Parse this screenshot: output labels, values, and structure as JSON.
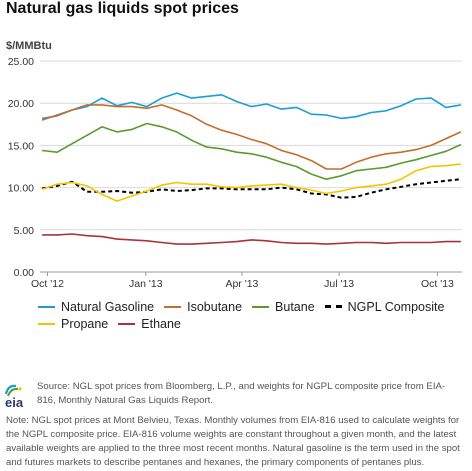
{
  "title": "Natural gas liquids spot prices",
  "unit": "$/MMBtu",
  "logo_text": "eia",
  "source": "Source: NGL spot prices from Bloomberg, L.P., and weights for NGPL composite price from EIA-816, Monthly Natural Gas Liquids Report.",
  "note": "Note: NGL spot prices at Mont Belvieu, Texas. Monthly volumes from EIA-816 used to calculate weights for the NGPL composite price. EIA-816 volume weights are constant throughout a given month, and the latest available weights are applied to the three most recent months. Natural gasoline is the term used in the spot and futures markets to describe pentanes and hexanes, the primary components of pentanes plus.",
  "chart_data": {
    "type": "line",
    "xlabel": "",
    "ylabel": "$/MMBtu",
    "ylim": [
      0,
      25
    ],
    "yticks": [
      "0.00",
      "5.00",
      "10.00",
      "15.00",
      "20.00",
      "25.00"
    ],
    "xlim": [
      "2012-09-24",
      "2013-10-24"
    ],
    "xticks": [
      {
        "label": "Oct '12",
        "date": "2012-10-01"
      },
      {
        "label": "Jan '13",
        "date": "2013-01-01"
      },
      {
        "label": "Apr '13",
        "date": "2013-04-01"
      },
      {
        "label": "Jul '13",
        "date": "2013-07-01"
      },
      {
        "label": "Oct '13",
        "date": "2013-10-01"
      }
    ],
    "grid": true,
    "legend_position": "bottom",
    "x": [
      "2012-09-26",
      "2012-10-10",
      "2012-10-24",
      "2012-11-07",
      "2012-11-21",
      "2012-12-05",
      "2012-12-19",
      "2013-01-02",
      "2013-01-16",
      "2013-01-30",
      "2013-02-13",
      "2013-02-27",
      "2013-03-13",
      "2013-03-27",
      "2013-04-10",
      "2013-04-24",
      "2013-05-08",
      "2013-05-22",
      "2013-06-05",
      "2013-06-19",
      "2013-07-03",
      "2013-07-17",
      "2013-07-31",
      "2013-08-14",
      "2013-08-28",
      "2013-09-11",
      "2013-09-25",
      "2013-10-09",
      "2013-10-23"
    ],
    "series": [
      {
        "name": "Natural Gasoline",
        "color": "#1a9ed9",
        "dashed": false,
        "values": [
          18.0,
          18.6,
          19.2,
          19.6,
          20.6,
          19.7,
          20.1,
          19.6,
          20.6,
          21.2,
          20.6,
          20.8,
          21.0,
          20.2,
          19.6,
          19.9,
          19.3,
          19.5,
          18.7,
          18.6,
          18.2,
          18.4,
          18.9,
          19.1,
          19.7,
          20.5,
          20.6,
          19.5,
          19.8
        ]
      },
      {
        "name": "Isobutane",
        "color": "#c46e2b",
        "dashed": false,
        "values": [
          18.2,
          18.5,
          19.2,
          19.8,
          19.8,
          19.6,
          19.6,
          19.4,
          19.8,
          19.2,
          18.5,
          17.5,
          16.8,
          16.3,
          15.7,
          15.2,
          14.4,
          13.9,
          13.2,
          12.2,
          12.2,
          13.0,
          13.6,
          14.0,
          14.2,
          14.5,
          15.0,
          15.8,
          16.6
        ]
      },
      {
        "name": "Butane",
        "color": "#5b9a2e",
        "dashed": false,
        "values": [
          14.4,
          14.2,
          15.2,
          16.2,
          17.2,
          16.6,
          16.9,
          17.6,
          17.2,
          16.6,
          15.6,
          14.8,
          14.6,
          14.2,
          14.0,
          13.6,
          13.0,
          12.5,
          11.6,
          11.0,
          11.4,
          12.0,
          12.2,
          12.4,
          12.9,
          13.3,
          13.8,
          14.3,
          15.1
        ]
      },
      {
        "name": "NGPL Composite",
        "color": "#000000",
        "dashed": true,
        "values": [
          9.9,
          10.2,
          10.7,
          9.5,
          9.5,
          9.6,
          9.4,
          9.5,
          9.8,
          9.6,
          9.7,
          9.9,
          9.9,
          9.8,
          9.8,
          9.8,
          10.0,
          9.8,
          9.3,
          9.2,
          8.8,
          8.9,
          9.4,
          9.8,
          10.1,
          10.4,
          10.6,
          10.8,
          11.0
        ]
      },
      {
        "name": "Propane",
        "color": "#f2c500",
        "dashed": false,
        "values": [
          9.8,
          10.4,
          10.6,
          10.2,
          9.2,
          8.4,
          9.0,
          9.6,
          10.3,
          10.6,
          10.4,
          10.4,
          10.1,
          10.0,
          10.2,
          10.3,
          10.4,
          10.0,
          9.7,
          9.3,
          9.6,
          10.0,
          10.2,
          10.4,
          11.0,
          12.0,
          12.5,
          12.6,
          12.8
        ]
      },
      {
        "name": "Ethane",
        "color": "#a8333d",
        "dashed": false,
        "values": [
          4.4,
          4.4,
          4.5,
          4.3,
          4.2,
          3.9,
          3.8,
          3.7,
          3.5,
          3.3,
          3.3,
          3.4,
          3.5,
          3.6,
          3.8,
          3.7,
          3.5,
          3.4,
          3.4,
          3.3,
          3.4,
          3.5,
          3.5,
          3.4,
          3.5,
          3.5,
          3.5,
          3.6,
          3.6
        ]
      }
    ]
  }
}
